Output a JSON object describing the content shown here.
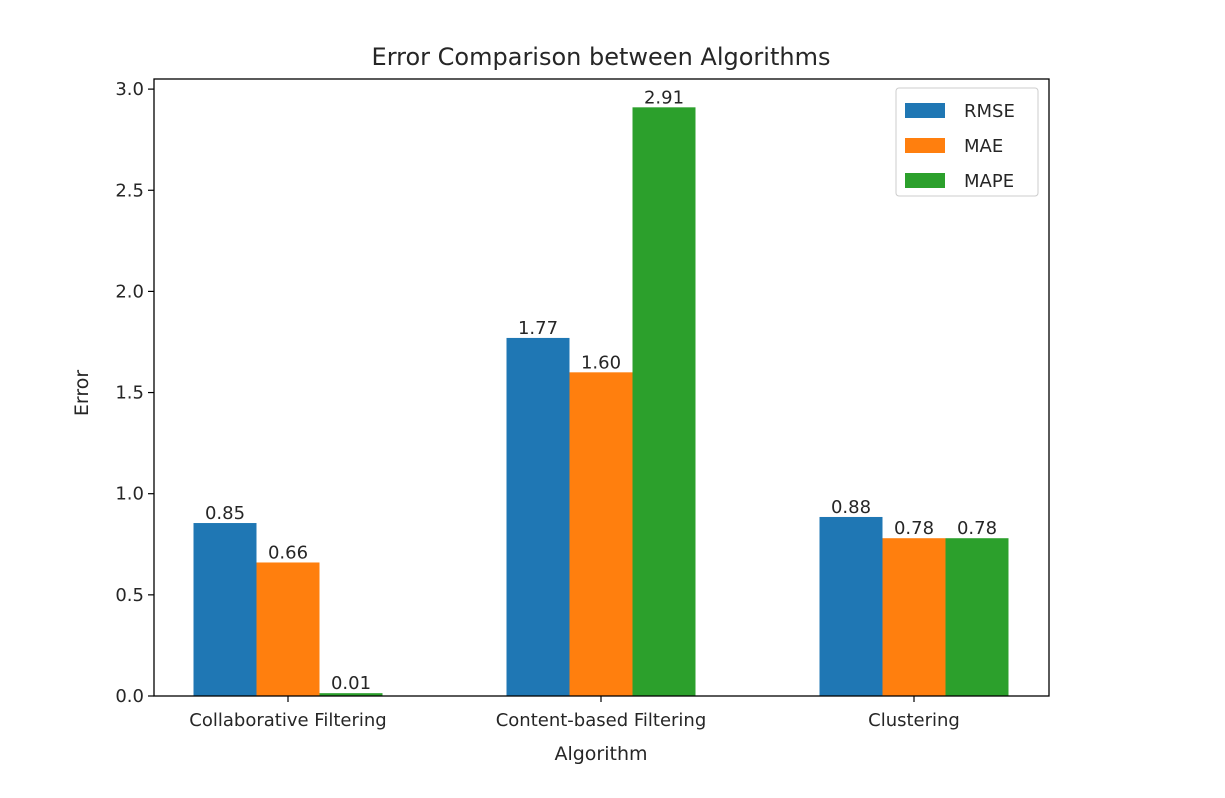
{
  "chart_data": {
    "type": "bar",
    "title": "Error Comparison between Algorithms",
    "xlabel": "Algorithm",
    "ylabel": "Error",
    "categories": [
      "Collaborative Filtering",
      "Content-based Filtering",
      "Clustering"
    ],
    "series": [
      {
        "name": "RMSE",
        "color": "#1f77b4",
        "values": [
          0.855,
          1.77,
          0.885
        ],
        "labels": [
          "0.85",
          "1.77",
          "0.88"
        ]
      },
      {
        "name": "MAE",
        "color": "#ff7f0e",
        "values": [
          0.66,
          1.6,
          0.78
        ],
        "labels": [
          "0.66",
          "1.60",
          "0.78"
        ]
      },
      {
        "name": "MAPE",
        "color": "#2ca02c",
        "values": [
          0.014,
          2.91,
          0.78
        ],
        "labels": [
          "0.01",
          "2.91",
          "0.78"
        ]
      }
    ],
    "ylim": [
      0,
      3.05
    ],
    "yticks": [
      "0.0",
      "0.5",
      "1.0",
      "1.5",
      "2.0",
      "2.5",
      "3.0"
    ],
    "legend_position": "top-right",
    "grid": false
  }
}
